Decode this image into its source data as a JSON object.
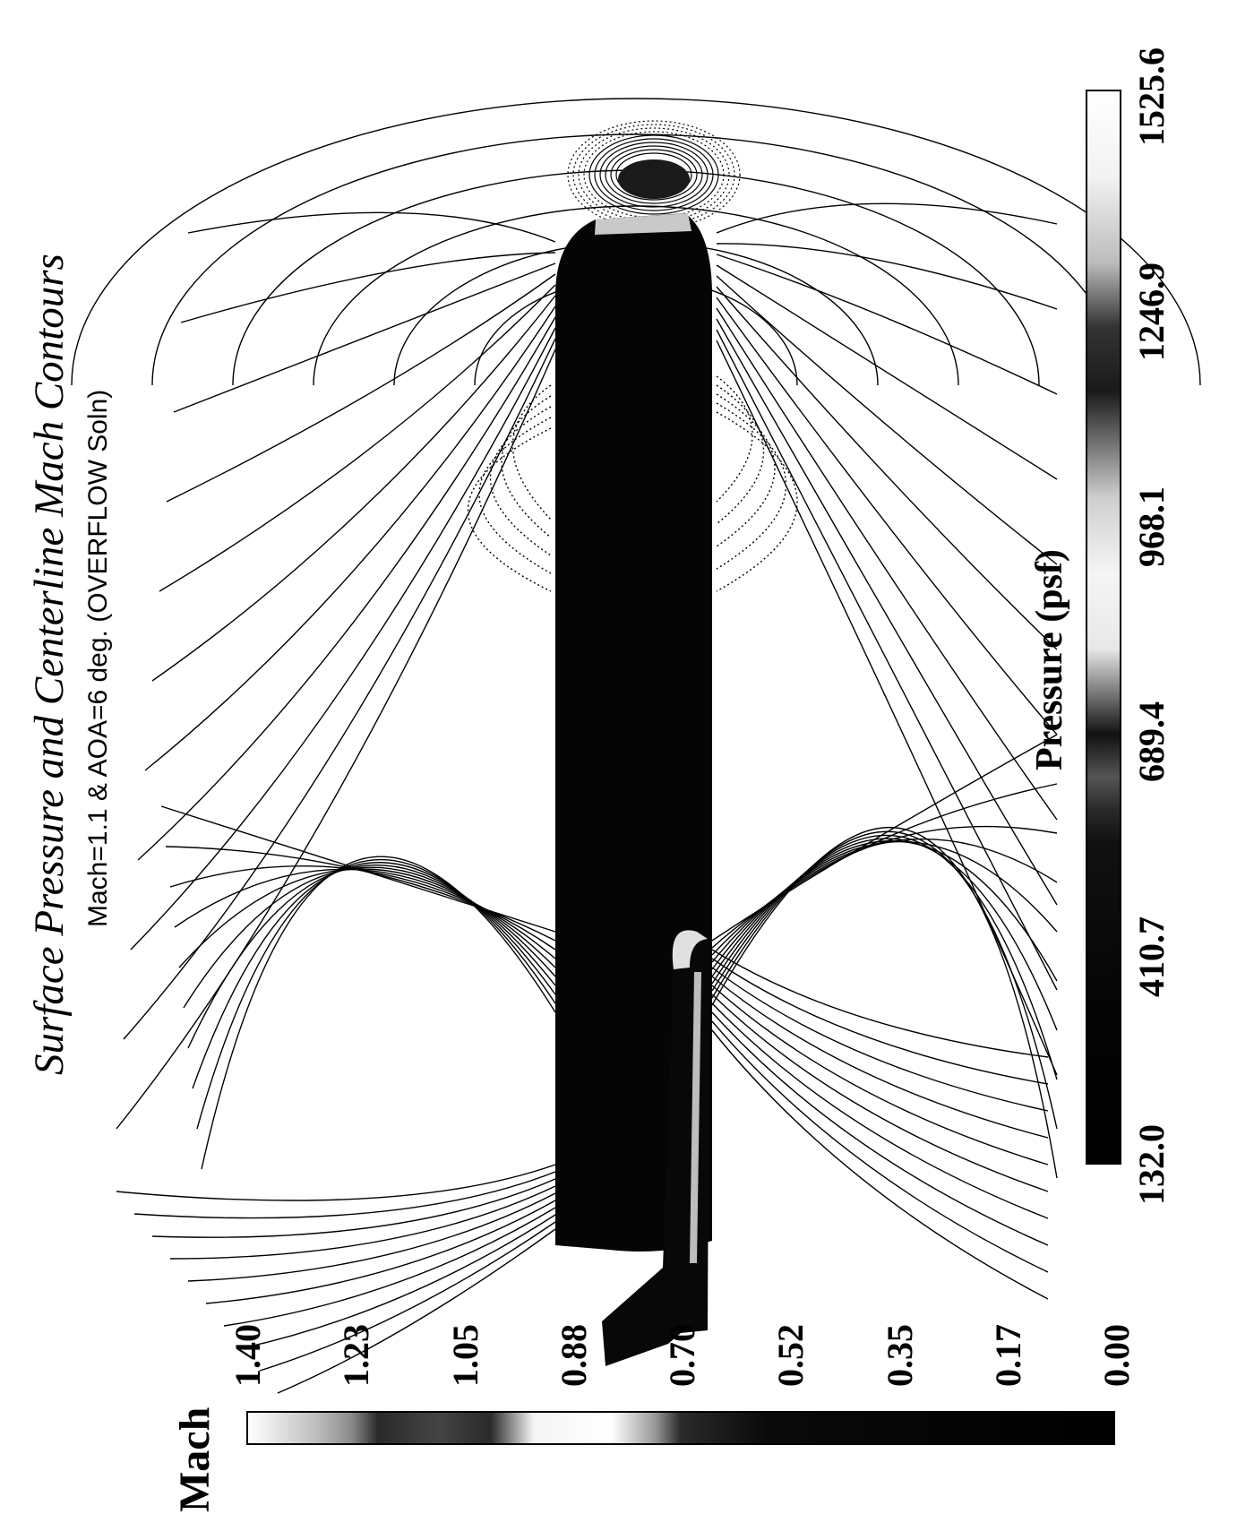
{
  "title": "Surface Pressure and Centerline Mach Contours",
  "subtitle": "Mach=1.1 & AOA=6 deg. (OVERFLOW Soln)",
  "pressure_colorbar": {
    "label": "Pressure (psf)",
    "ticks": [
      "132.0",
      "410.7",
      "689.4",
      "968.1",
      "1246.9",
      "1525.6"
    ],
    "range": [
      132.0,
      1525.6
    ]
  },
  "mach_colorbar": {
    "label": "Mach",
    "ticks": [
      "0.00",
      "0.17",
      "0.35",
      "0.52",
      "0.70",
      "0.88",
      "1.05",
      "1.23",
      "1.40"
    ],
    "range": [
      0.0,
      1.4
    ]
  },
  "colors": {
    "ink": "#000000",
    "background": "#ffffff",
    "body": "#050505",
    "highlight": "#d8d8d8"
  }
}
